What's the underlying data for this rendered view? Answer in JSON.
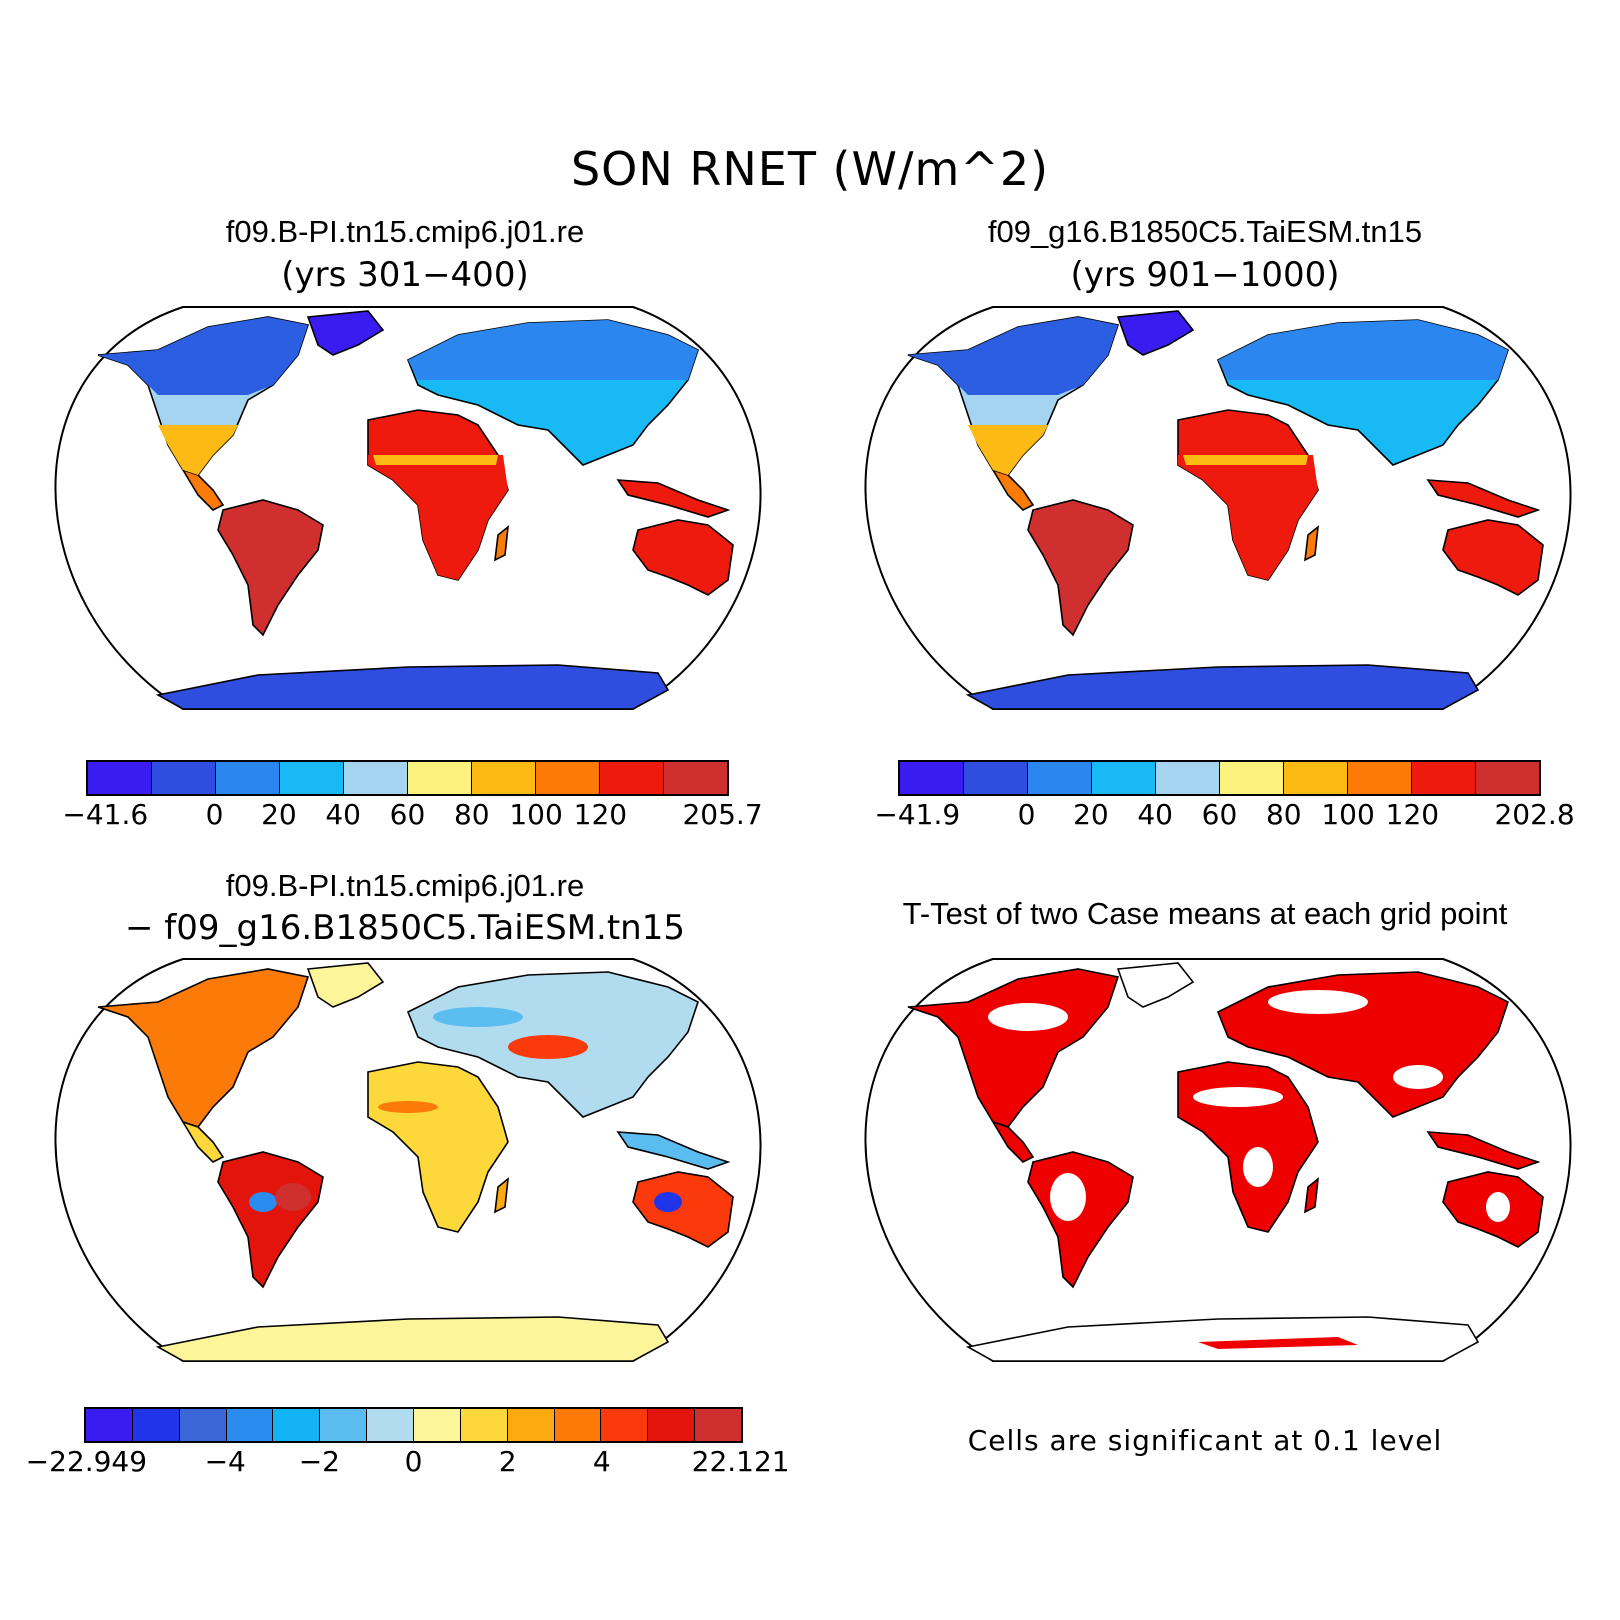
{
  "title": "SON RNET (W/m^2)",
  "panels": {
    "top_left": {
      "case": "f09.B-PI.tn15.cmip6.j01.re",
      "years": "(yrs 301−400)",
      "colorbar": {
        "colors": [
          "#3a1cf0",
          "#2f4ee0",
          "#2b86ef",
          "#17baf4",
          "#a4d4ef",
          "#fdf27e",
          "#fdb914",
          "#fb7a08",
          "#ee1a0e",
          "#d02f2f"
        ],
        "labels": [
          "−41.6",
          "0",
          "20",
          "40",
          "60",
          "80",
          "100",
          "120",
          "205.7"
        ]
      }
    },
    "top_right": {
      "case": "f09_g16.B1850C5.TaiESM.tn15",
      "years": "(yrs 901−1000)",
      "colorbar": {
        "colors": [
          "#3a1cf0",
          "#2f4ee0",
          "#2b86ef",
          "#17baf4",
          "#a4d4ef",
          "#fdf27e",
          "#fdb914",
          "#fb7a08",
          "#ee1a0e",
          "#d02f2f"
        ],
        "labels": [
          "−41.9",
          "0",
          "20",
          "40",
          "60",
          "80",
          "100",
          "120",
          "202.8"
        ]
      }
    },
    "bottom_left": {
      "case": "f09.B-PI.tn15.cmip6.j01.re",
      "minus_case": "−  f09_g16.B1850C5.TaiESM.tn15",
      "colorbar": {
        "colors": [
          "#3a1cf0",
          "#2034ea",
          "#3a66d8",
          "#2a8cef",
          "#13b4f6",
          "#5bbcef",
          "#b1dcef",
          "#fdf59a",
          "#fdd83a",
          "#fcaa10",
          "#fb7a08",
          "#fb3a0b",
          "#e2140c",
          "#cf2f2f"
        ],
        "labels": [
          "−22.949",
          "−4",
          "−2",
          "0",
          "2",
          "4",
          "22.121"
        ]
      }
    },
    "bottom_right": {
      "title": "T-Test of two Case means at each grid point",
      "note": "Cells are significant at 0.1 level"
    }
  }
}
